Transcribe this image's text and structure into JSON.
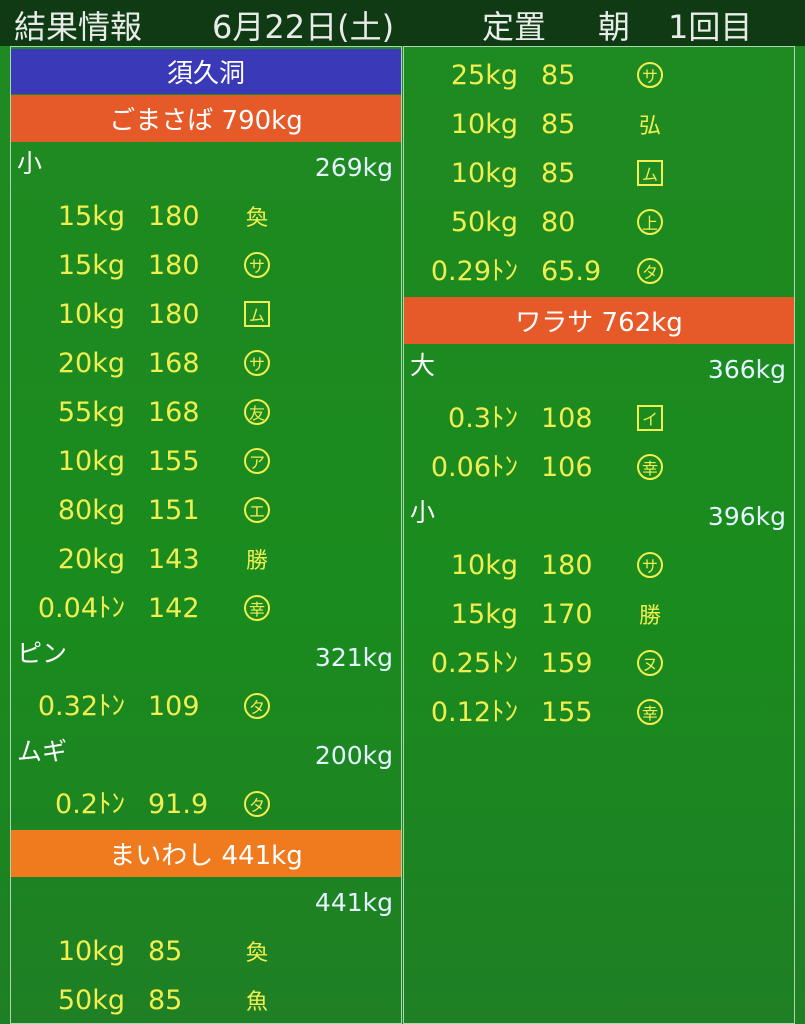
{
  "header": [
    "結果情報",
    "6月22日(土)",
    "定置",
    "朝",
    "1回目"
  ],
  "columns": [
    [
      {
        "location": "須久洞"
      },
      {
        "fish": "ごまさば 790kg"
      },
      {
        "group": "小",
        "total": "269kg"
      },
      {
        "weight": "15kg",
        "price": "180",
        "mark": "奐",
        "frame": "none"
      },
      {
        "weight": "15kg",
        "price": "180",
        "mark": "サ",
        "frame": "circle"
      },
      {
        "weight": "10kg",
        "price": "180",
        "mark": "ム",
        "frame": "box"
      },
      {
        "weight": "20kg",
        "price": "168",
        "mark": "サ",
        "frame": "circle"
      },
      {
        "weight": "55kg",
        "price": "168",
        "mark": "友",
        "frame": "circle"
      },
      {
        "weight": "10kg",
        "price": "155",
        "mark": "ア",
        "frame": "circle"
      },
      {
        "weight": "80kg",
        "price": "151",
        "mark": "エ",
        "frame": "circle"
      },
      {
        "weight": "20kg",
        "price": "143",
        "mark": "勝",
        "frame": "none"
      },
      {
        "weight": "0.04ﾄﾝ",
        "price": "142",
        "mark": "幸",
        "frame": "circle"
      },
      {
        "group": "ピン",
        "total": "321kg"
      },
      {
        "weight": "0.32ﾄﾝ",
        "price": "109",
        "mark": "タ",
        "frame": "circle"
      },
      {
        "group": "ムギ",
        "total": "200kg"
      },
      {
        "weight": "0.2ﾄﾝ",
        "price": "91.9",
        "mark": "タ",
        "frame": "circle"
      },
      {
        "fish": "まいわし 441kg"
      },
      {
        "total": "441kg"
      },
      {
        "weight": "10kg",
        "price": "85",
        "mark": "奐",
        "frame": "none"
      },
      {
        "weight": "50kg",
        "price": "85",
        "mark": "魚",
        "frame": "none"
      }
    ],
    [
      {
        "weight": "25kg",
        "price": "85",
        "mark": "サ",
        "frame": "circle"
      },
      {
        "weight": "10kg",
        "price": "85",
        "mark": "弘",
        "frame": "none"
      },
      {
        "weight": "10kg",
        "price": "85",
        "mark": "ム",
        "frame": "box"
      },
      {
        "weight": "50kg",
        "price": "80",
        "mark": "上",
        "frame": "circle"
      },
      {
        "weight": "0.29ﾄﾝ",
        "price": "65.9",
        "mark": "タ",
        "frame": "circle"
      },
      {
        "fish": "ワラサ 762kg"
      },
      {
        "group": "大",
        "total": "366kg"
      },
      {
        "weight": "0.3ﾄﾝ",
        "price": "108",
        "mark": "イ",
        "frame": "box"
      },
      {
        "weight": "0.06ﾄﾝ",
        "price": "106",
        "mark": "幸",
        "frame": "circle"
      },
      {
        "group": "小",
        "total": "396kg"
      },
      {
        "weight": "10kg",
        "price": "180",
        "mark": "サ",
        "frame": "circle"
      },
      {
        "weight": "15kg",
        "price": "170",
        "mark": "勝",
        "frame": "none"
      },
      {
        "weight": "0.25ﾄﾝ",
        "price": "159",
        "mark": "ヌ",
        "frame": "circle"
      },
      {
        "weight": "0.12ﾄﾝ",
        "price": "155",
        "mark": "幸",
        "frame": "circle"
      }
    ]
  ]
}
